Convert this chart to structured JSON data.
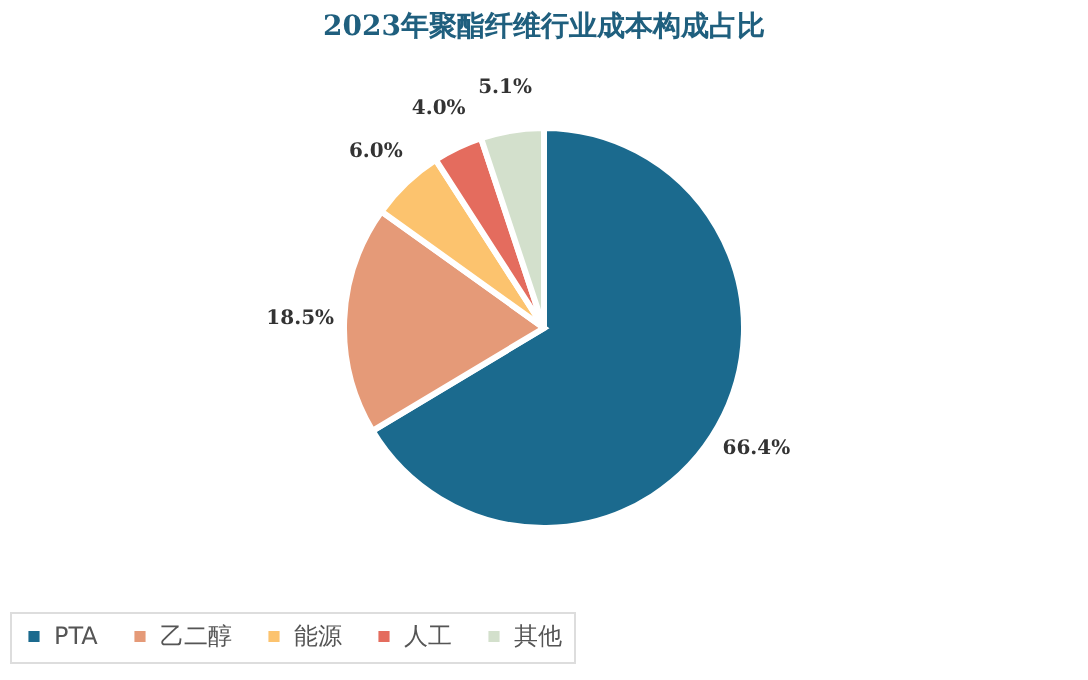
{
  "chart_data": {
    "type": "pie",
    "title": "2023年聚酯纤维行业成本构成占比",
    "categories": [
      "PTA",
      "乙二醇",
      "能源",
      "人工",
      "其他"
    ],
    "values": [
      66.4,
      18.5,
      6.0,
      4.0,
      5.1
    ],
    "value_labels": [
      "66.4%",
      "18.5%",
      "6.0%",
      "4.0%",
      "5.1%"
    ],
    "colors": [
      "#1b6a8e",
      "#e59a78",
      "#fcc36e",
      "#e46c5e",
      "#d3e0cc"
    ],
    "legend": "bottom"
  }
}
